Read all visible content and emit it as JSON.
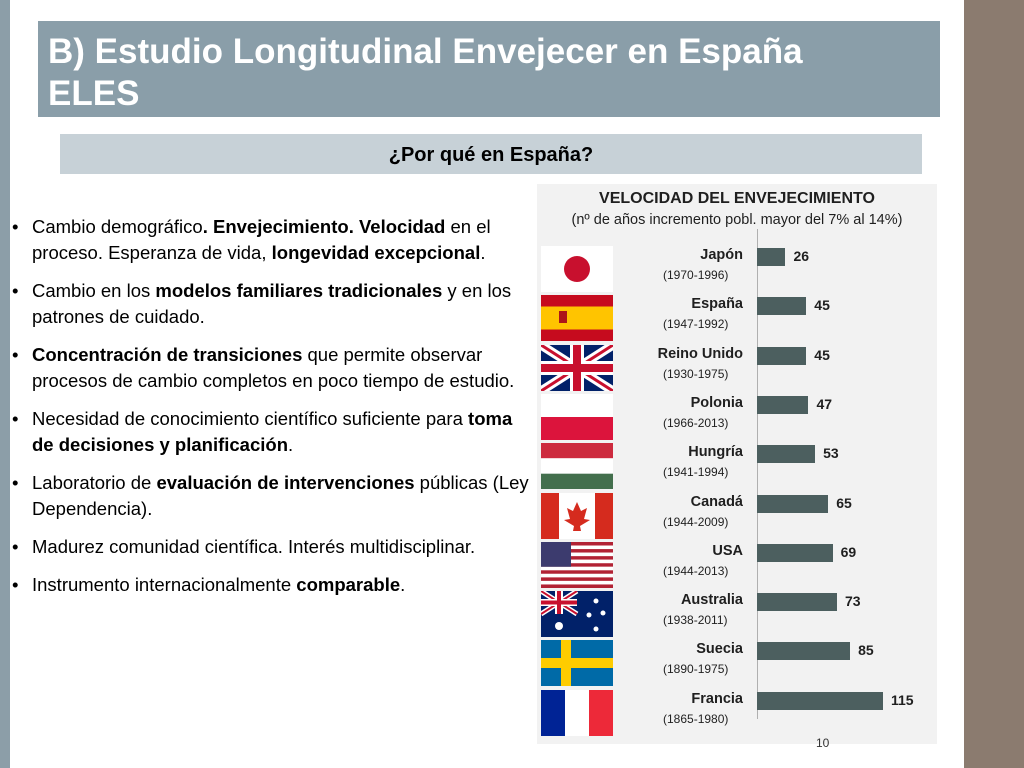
{
  "slide": {
    "title_line1": "B) Estudio Longitudinal Envejecer en España",
    "title_line2": "ELES",
    "subtitle": "¿Por qué en España?",
    "page_number": "10"
  },
  "bullets": [
    {
      "parts": [
        {
          "t": "Cambio demográfico",
          "b": false
        },
        {
          "t": ". Envejecimiento. Velocidad",
          "b": true
        },
        {
          "t": " en el proceso. Esperanza de vida, ",
          "b": false
        },
        {
          "t": "longevidad excepcional",
          "b": true
        },
        {
          "t": ".",
          "b": false
        }
      ]
    },
    {
      "parts": [
        {
          "t": "Cambio en los ",
          "b": false
        },
        {
          "t": "modelos familiares tradicionales",
          "b": true
        },
        {
          "t": " y en los patrones de cuidado.",
          "b": false
        }
      ]
    },
    {
      "parts": [
        {
          "t": "Concentración de transiciones",
          "b": true
        },
        {
          "t": " que permite observar procesos de cambio completos en poco tiempo de estudio.",
          "b": false
        }
      ]
    },
    {
      "parts": [
        {
          "t": "Necesidad de conocimiento científico suficiente para ",
          "b": false
        },
        {
          "t": "toma de decisiones y planificación",
          "b": true
        },
        {
          "t": ".",
          "b": false
        }
      ]
    },
    {
      "parts": [
        {
          "t": "Laboratorio de ",
          "b": false
        },
        {
          "t": "evaluación de intervenciones",
          "b": true
        },
        {
          "t": " públicas (Ley Dependencia).",
          "b": false
        }
      ]
    },
    {
      "parts": [
        {
          "t": "Madurez comunidad científica. Interés multidisciplinar.",
          "b": false
        }
      ]
    },
    {
      "parts": [
        {
          "t": "Instrumento internacionalmente ",
          "b": false
        },
        {
          "t": "comparable",
          "b": true
        },
        {
          "t": ".",
          "b": false
        }
      ]
    }
  ],
  "chart_data": {
    "type": "bar",
    "orientation": "horizontal",
    "title": "VELOCIDAD DEL ENVEJECIMIENTO",
    "subtitle": "(nº de años incremento pobl. mayor del 7% al 14%)",
    "categories": [
      "Japón",
      "España",
      "Reino Unido",
      "Polonia",
      "Hungría",
      "Canadá",
      "USA",
      "Australia",
      "Suecia",
      "Francia"
    ],
    "periods": [
      "(1970-1996)",
      "(1947-1992)",
      "(1930-1975)",
      "(1966-2013)",
      "(1941-1994)",
      "(1944-2009)",
      "(1944-2013)",
      "(1938-2011)",
      "(1890-1975)",
      "(1865-1980)"
    ],
    "values": [
      26,
      45,
      45,
      47,
      53,
      65,
      69,
      73,
      85,
      115
    ],
    "xlim": [
      0,
      130
    ],
    "bar_color": "#4c5f5f",
    "flags": [
      "japan-flag",
      "spain-flag",
      "uk-flag",
      "poland-flag",
      "hungary-flag",
      "canada-flag",
      "usa-flag",
      "australia-flag",
      "sweden-flag",
      "france-flag"
    ]
  }
}
